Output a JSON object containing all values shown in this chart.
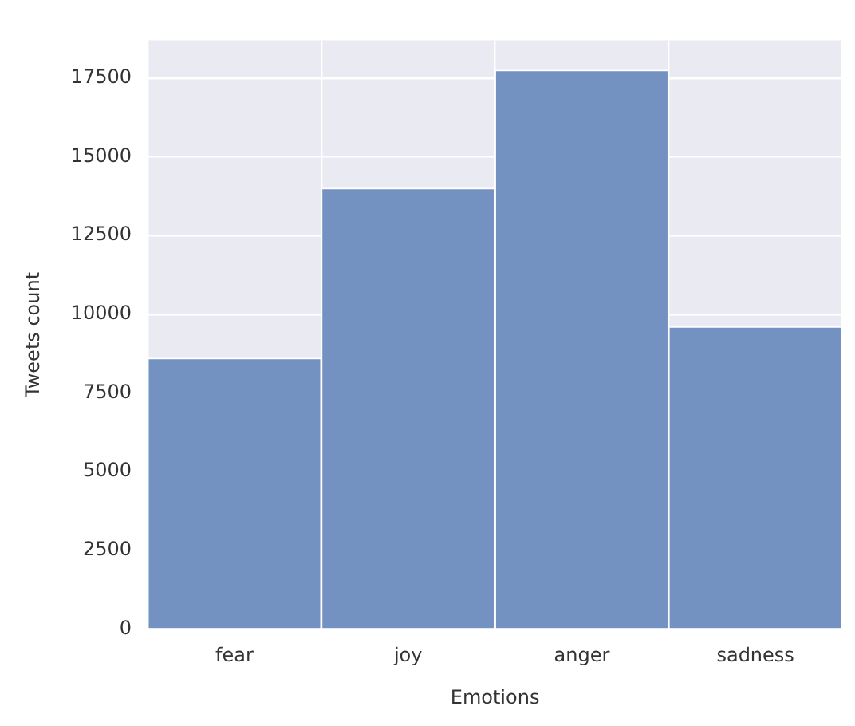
{
  "chart_data": {
    "type": "bar",
    "xlabel": "Emotions",
    "ylabel": "Tweets count",
    "categories": [
      "fear",
      "joy",
      "anger",
      "sadness"
    ],
    "values": [
      8600,
      14000,
      17750,
      9600
    ],
    "color": "#7391c1",
    "ylim": [
      0,
      18700
    ],
    "yticks": [
      0,
      2500,
      5000,
      7500,
      10000,
      12500,
      15000,
      17500
    ],
    "grid": true
  }
}
